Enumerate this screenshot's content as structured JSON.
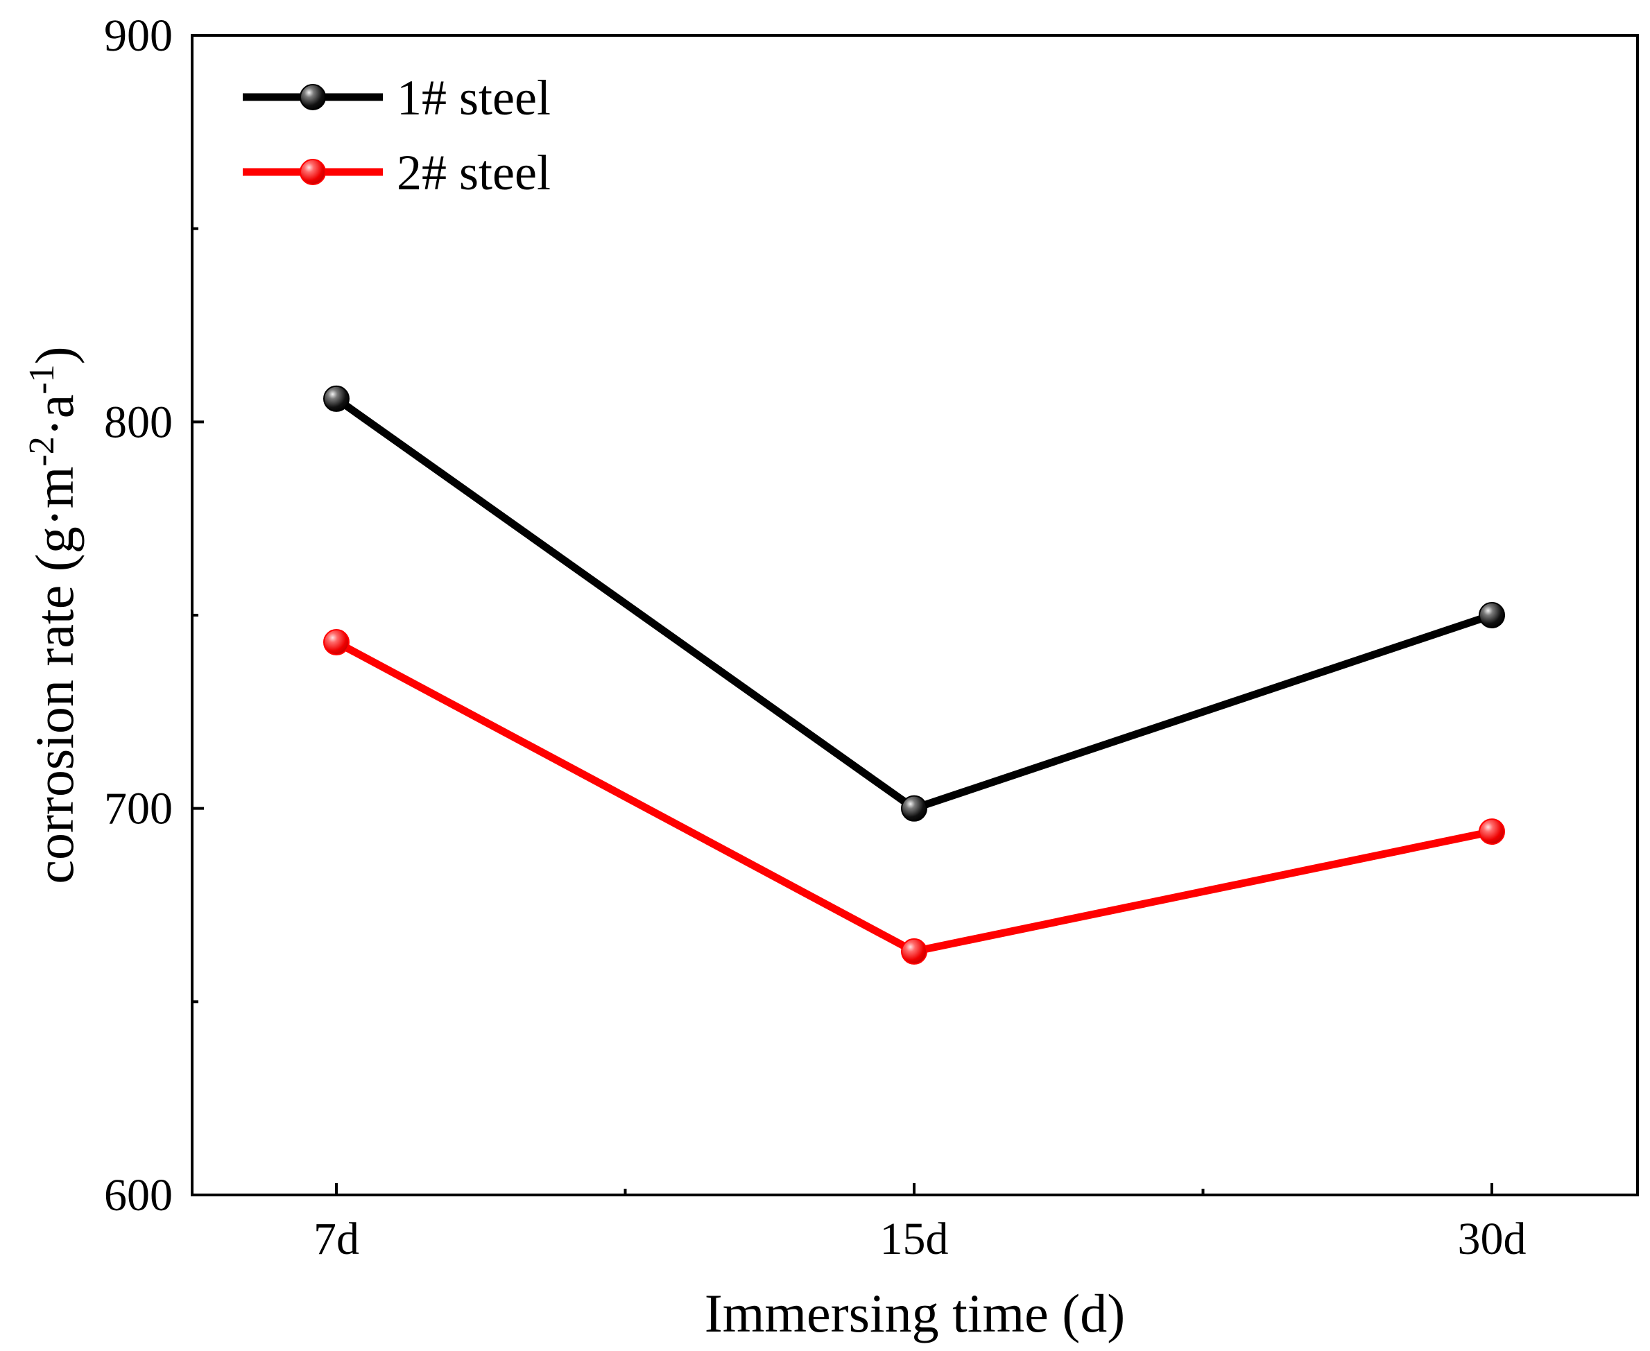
{
  "chart_data": {
    "type": "line",
    "title": "",
    "xlabel": "Immersing time (d)",
    "ylabel": {
      "main": "corrosion rate (g·m",
      "sup1": "-2",
      "mid": "·a",
      "sup2": "-1",
      "end": ")"
    },
    "categories": [
      "7d",
      "15d",
      "30d"
    ],
    "ylim": [
      600,
      900
    ],
    "yticks": [
      600,
      700,
      800,
      900
    ],
    "ytick_labels": [
      "600",
      "700",
      "800",
      "900"
    ],
    "grid": false,
    "legend_position": "top-left",
    "series": [
      {
        "name": "1# steel",
        "color": "#000000",
        "values": [
          806,
          700,
          750
        ]
      },
      {
        "name": "2# steel",
        "color": "#ff0000",
        "values": [
          743,
          663,
          694
        ]
      }
    ]
  }
}
